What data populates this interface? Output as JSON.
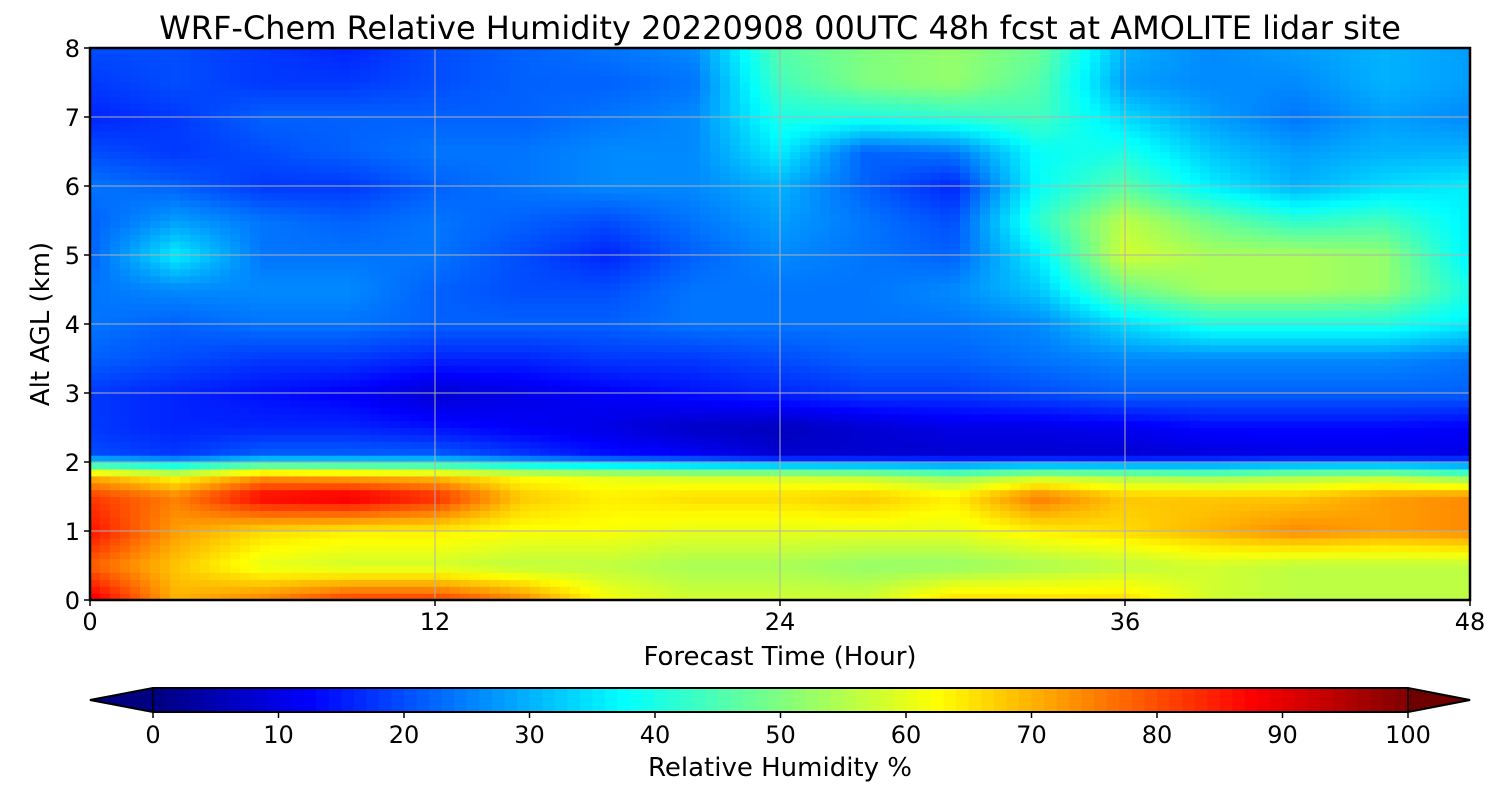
{
  "chart_data": {
    "type": "heatmap",
    "title": "WRF-Chem Relative Humidity 20220908 00UTC 48h fcst at AMOLITE lidar site",
    "xlabel": "Forecast Time (Hour)",
    "ylabel": "Alt AGL (km)",
    "xlim": [
      0,
      48
    ],
    "ylim": [
      0,
      8
    ],
    "x_ticks": [
      "0",
      "12",
      "24",
      "36",
      "48"
    ],
    "y_ticks": [
      "0",
      "1",
      "2",
      "3",
      "4",
      "5",
      "6",
      "7",
      "8"
    ],
    "grid": true,
    "x": [
      0,
      3,
      6,
      9,
      12,
      15,
      18,
      21,
      24,
      27,
      30,
      33,
      36,
      39,
      42,
      45,
      48
    ],
    "y": [
      0,
      0.5,
      1,
      1.5,
      1.8,
      2.1,
      2.5,
      3,
      3.5,
      4,
      4.5,
      5,
      5.5,
      6,
      6.5,
      7,
      7.5,
      8
    ],
    "z": [
      [
        90,
        70,
        75,
        82,
        82,
        75,
        62,
        58,
        58,
        58,
        66,
        66,
        66,
        58,
        56,
        56,
        56
      ],
      [
        78,
        68,
        60,
        58,
        58,
        56,
        56,
        54,
        54,
        52,
        52,
        54,
        56,
        58,
        56,
        56,
        56
      ],
      [
        86,
        72,
        66,
        64,
        64,
        62,
        62,
        60,
        60,
        60,
        60,
        64,
        66,
        70,
        74,
        72,
        74
      ],
      [
        82,
        75,
        88,
        90,
        84,
        68,
        64,
        66,
        66,
        68,
        64,
        76,
        68,
        68,
        68,
        72,
        74
      ],
      [
        70,
        62,
        72,
        70,
        68,
        62,
        60,
        58,
        58,
        56,
        52,
        56,
        54,
        52,
        54,
        55,
        50
      ],
      [
        20,
        18,
        22,
        22,
        22,
        18,
        14,
        12,
        8,
        8,
        8,
        8,
        8,
        9,
        10,
        10,
        10
      ],
      [
        18,
        16,
        16,
        16,
        14,
        12,
        10,
        7,
        6,
        8,
        10,
        10,
        11,
        13,
        13,
        13,
        12
      ],
      [
        18,
        16,
        14,
        12,
        8,
        10,
        12,
        14,
        16,
        18,
        18,
        20,
        22,
        22,
        22,
        22,
        22
      ],
      [
        22,
        20,
        18,
        18,
        16,
        16,
        18,
        18,
        20,
        22,
        22,
        24,
        26,
        26,
        26,
        26,
        24
      ],
      [
        24,
        22,
        24,
        24,
        22,
        22,
        22,
        24,
        24,
        24,
        24,
        26,
        34,
        40,
        40,
        40,
        36
      ],
      [
        24,
        26,
        26,
        26,
        22,
        20,
        20,
        24,
        24,
        24,
        26,
        32,
        48,
        54,
        54,
        52,
        40
      ],
      [
        22,
        36,
        24,
        24,
        24,
        20,
        16,
        22,
        26,
        24,
        22,
        36,
        58,
        54,
        54,
        52,
        36
      ],
      [
        22,
        28,
        24,
        22,
        24,
        22,
        20,
        24,
        28,
        24,
        20,
        42,
        56,
        48,
        42,
        44,
        36
      ],
      [
        24,
        22,
        18,
        18,
        22,
        24,
        26,
        26,
        30,
        22,
        16,
        38,
        46,
        36,
        30,
        34,
        36
      ],
      [
        20,
        18,
        20,
        22,
        24,
        24,
        26,
        26,
        36,
        22,
        24,
        38,
        40,
        32,
        28,
        30,
        30
      ],
      [
        16,
        18,
        22,
        22,
        22,
        22,
        24,
        26,
        40,
        40,
        42,
        44,
        34,
        28,
        24,
        28,
        26
      ],
      [
        18,
        20,
        18,
        18,
        20,
        22,
        22,
        24,
        44,
        50,
        52,
        46,
        28,
        26,
        26,
        30,
        28
      ],
      [
        20,
        20,
        18,
        16,
        20,
        22,
        24,
        26,
        46,
        50,
        52,
        48,
        30,
        26,
        28,
        30,
        28
      ]
    ],
    "colorbar": {
      "label": "Relative Humidity %",
      "min": 0,
      "max": 100,
      "ticks": [
        "0",
        "10",
        "20",
        "30",
        "40",
        "50",
        "60",
        "70",
        "80",
        "90",
        "100"
      ],
      "colormap": "jet",
      "extend": "both"
    }
  }
}
